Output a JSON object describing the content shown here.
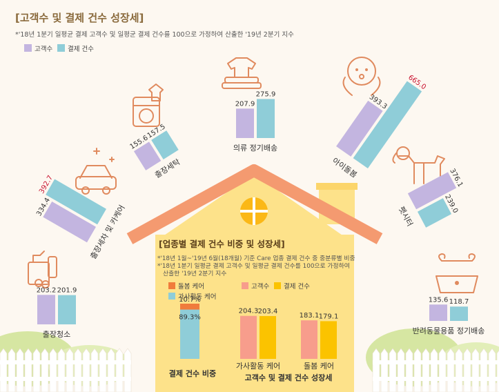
{
  "header": {
    "title": "[고객수 및 결제 건수 성장세]",
    "note": "*'18년 1분기 일평균 결제 고객수 및 일평균 결제 건수를 100으로 가정하여 산출한 '19년 2분기 지수"
  },
  "legend": {
    "customers": "고객수",
    "payments": "결제 건수"
  },
  "colors": {
    "customers": "#c3b5e0",
    "payments": "#8fcdd8",
    "care_industry": "#f07c3c",
    "home": "#8fcdd8",
    "inner_customers": "#f79d8c",
    "inner_payments": "#fbc300",
    "house": "#fde28a",
    "roof": "#f49a70",
    "window": "#fbb817",
    "highlight": "#c8102e"
  },
  "chart_data": [
    {
      "type": "bar",
      "title": "[고객수 및 결제 건수 성장세]",
      "categories": [
        "출장청소",
        "출장세차 및 카케어",
        "출장세탁",
        "의류 정기배송",
        "아이돌봄",
        "펫시터",
        "반려동물용품 정기배송"
      ],
      "series": [
        {
          "name": "고객수",
          "values": [
            203.2,
            334.4,
            155.6,
            207.9,
            393.3,
            376.1,
            135.6
          ]
        },
        {
          "name": "결제 건수",
          "values": [
            201.9,
            392.7,
            157.5,
            275.9,
            665.0,
            239.0,
            118.7
          ]
        }
      ],
      "highlighted_labels": [
        "392.7",
        "665.0"
      ],
      "legend": "top-left"
    },
    {
      "type": "bar",
      "title": "결제 건수 비중",
      "categories": [
        "결제 건수 비중"
      ],
      "series": [
        {
          "name": "돌봄 케어",
          "values": [
            10.7
          ]
        },
        {
          "name": "가사활동 케어",
          "values": [
            89.3
          ]
        }
      ],
      "unit": "%"
    },
    {
      "type": "bar",
      "title": "고객수 및 결제 건수 성장세",
      "categories": [
        "가사활동 케어",
        "돌봄 케어"
      ],
      "series": [
        {
          "name": "고객수",
          "values": [
            204.3,
            183.1
          ]
        },
        {
          "name": "결제 건수",
          "values": [
            203.4,
            179.1
          ]
        }
      ]
    }
  ],
  "inner": {
    "title": "[업종별 결제 건수 비중 및 성장세]",
    "note1": "*'18년 1월~'19년 6월(18개월) 기준 Care 업종 결제 건수 중 중분류별 비중",
    "note2": "*'18년 1분기 일평균 결제 고객수 및 일평균 결제 건수를 100으로 가정하여",
    "note3": "산출한 '19년 2분기 지수",
    "legend_care": "돌봄 케어",
    "legend_home": "가사활동 케어",
    "legend_customers": "고객수",
    "legend_payments": "결제 건수",
    "share_label": "결제 건수 비중",
    "growth_label": "고객수 및 결제 건수 성장세",
    "pct_care": "10.7%",
    "pct_home": "89.3%"
  }
}
